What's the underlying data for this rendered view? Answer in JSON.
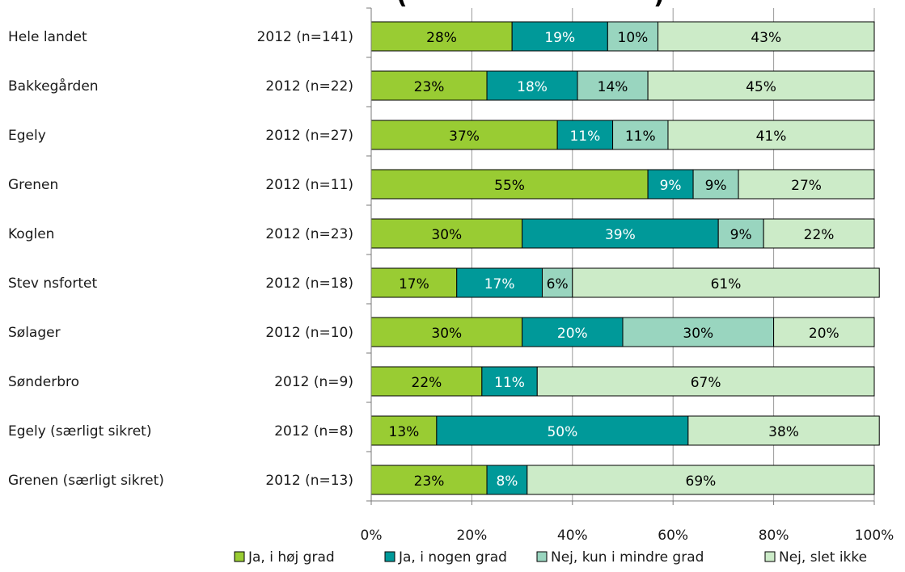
{
  "chart_data": {
    "type": "bar",
    "orientation": "horizontal",
    "stacked": "percent",
    "title": "(",
    "title_right": ")",
    "categories": [
      "Hele landet",
      "Bakkegården",
      "Egely",
      "Grenen",
      "Koglen",
      "Stev nsfortet",
      "Sølager",
      "Sønderbro",
      "Egely (særligt sikret)",
      "Grenen (særligt sikret)"
    ],
    "category_notes": [
      "2012 (n=141)",
      "2012 (n=22)",
      "2012 (n=27)",
      "2012 (n=11)",
      "2012 (n=23)",
      "2012 (n=18)",
      "2012 (n=10)",
      "2012 (n=9)",
      "2012 (n=8)",
      "2012 (n=13)"
    ],
    "series": [
      {
        "name": "Ja, i høj grad",
        "color": "#99CC33",
        "label_color": "#000000",
        "values": [
          28,
          23,
          37,
          55,
          30,
          17,
          30,
          22,
          13,
          23
        ],
        "labels": [
          "28%",
          "23%",
          "37%",
          "55%",
          "30%",
          "17%",
          "30%",
          "22%",
          "13%",
          "23%"
        ]
      },
      {
        "name": "Ja, i nogen grad",
        "color": "#009999",
        "label_color": "#ffffff",
        "values": [
          19,
          18,
          11,
          9,
          39,
          17,
          20,
          11,
          50,
          8
        ],
        "labels": [
          "19%",
          "18%",
          "11%",
          "9%",
          "39%",
          "17%",
          "20%",
          "11%",
          "50%",
          "8%"
        ]
      },
      {
        "name": "Nej, kun i mindre grad",
        "color": "#99D5BF",
        "label_color": "#000000",
        "values": [
          10,
          14,
          11,
          9,
          9,
          6,
          30,
          0,
          0,
          0
        ],
        "labels": [
          "10%",
          "14%",
          "11%",
          "9%",
          "9%",
          "6%",
          "30%",
          "",
          "",
          ""
        ]
      },
      {
        "name": "Nej, slet ikke",
        "color": "#CCEBC8",
        "label_color": "#000000",
        "values": [
          43,
          45,
          41,
          27,
          22,
          61,
          20,
          67,
          38,
          69
        ],
        "labels": [
          "43%",
          "45%",
          "41%",
          "27%",
          "22%",
          "61%",
          "20%",
          "67%",
          "38%",
          "69%"
        ]
      }
    ],
    "x_ticks": [
      "0%",
      "20%",
      "40%",
      "60%",
      "80%",
      "100%"
    ],
    "xlim": [
      0,
      100
    ],
    "grid": true,
    "legend_position": "bottom"
  }
}
